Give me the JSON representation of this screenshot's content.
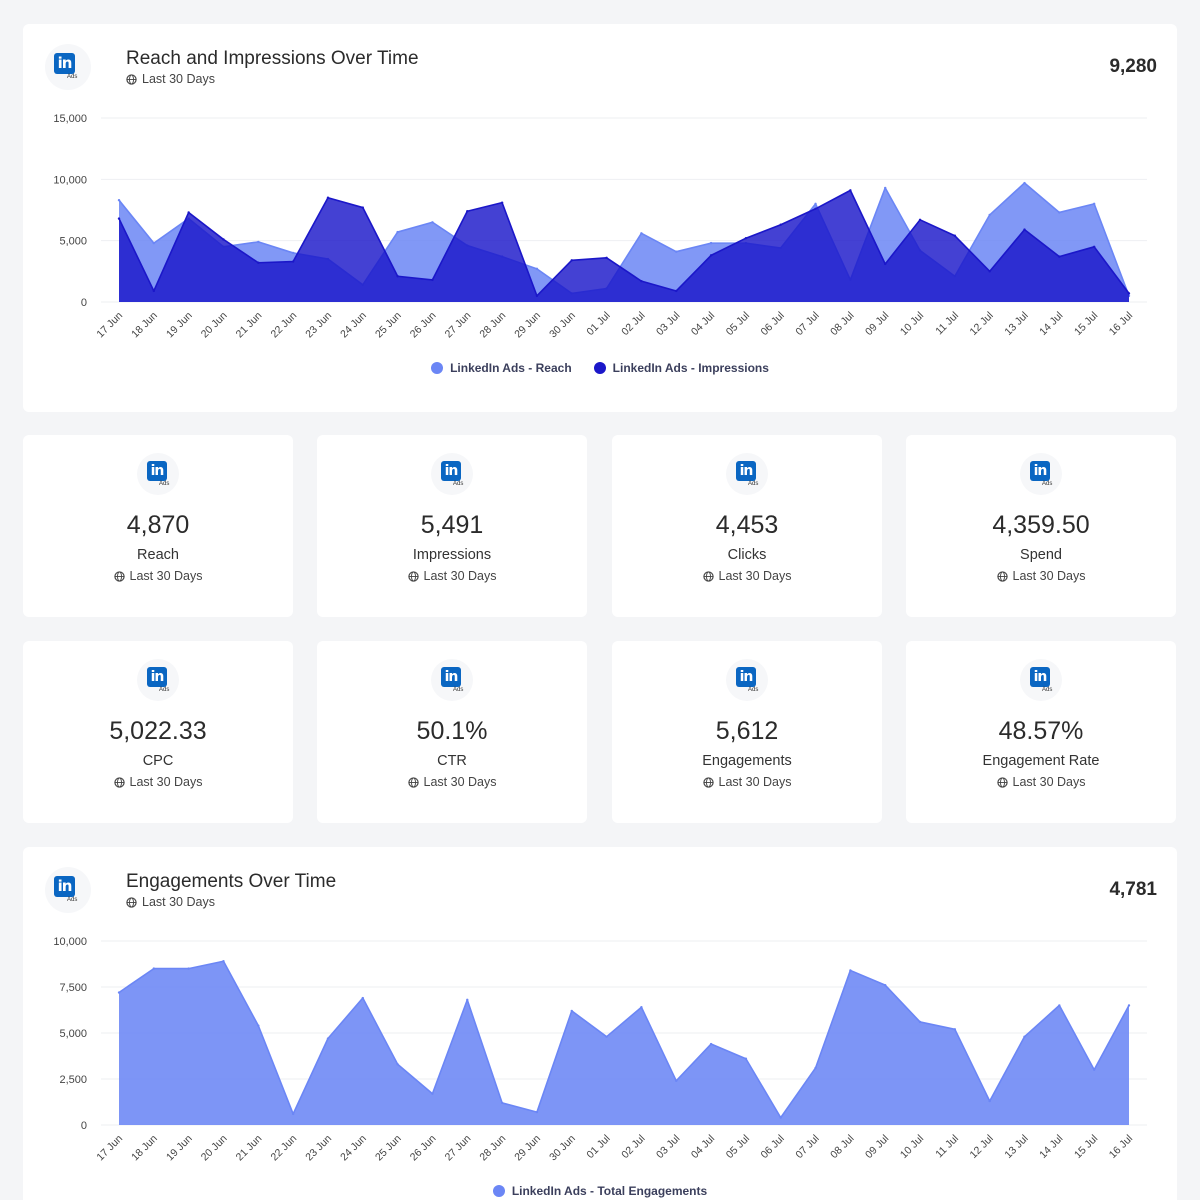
{
  "colors": {
    "reach": "#6b86f5",
    "impressions": "#1b17c9",
    "engagements": "#6b86f5",
    "linkedin_blue": "#0a66c2"
  },
  "logo": {
    "text": "in",
    "sub": "Ads"
  },
  "reach_card": {
    "title": "Reach and Impressions Over Time",
    "period": "Last 30 Days",
    "headline": "9,280"
  },
  "engagements_card": {
    "title": "Engagements Over Time",
    "period": "Last 30 Days",
    "headline": "4,781"
  },
  "kpis": [
    {
      "value": "4,870",
      "label": "Reach",
      "period": "Last 30 Days"
    },
    {
      "value": "5,491",
      "label": "Impressions",
      "period": "Last 30 Days"
    },
    {
      "value": "4,453",
      "label": "Clicks",
      "period": "Last 30 Days"
    },
    {
      "value": "4,359.50",
      "label": "Spend",
      "period": "Last 30 Days"
    },
    {
      "value": "5,022.33",
      "label": "CPC",
      "period": "Last 30 Days"
    },
    {
      "value": "50.1%",
      "label": "CTR",
      "period": "Last 30 Days"
    },
    {
      "value": "5,612",
      "label": "Engagements",
      "period": "Last 30 Days"
    },
    {
      "value": "48.57%",
      "label": "Engagement Rate",
      "period": "Last 30 Days"
    }
  ],
  "chart_data": [
    {
      "type": "area",
      "categories": [
        "17 Jun",
        "18 Jun",
        "19 Jun",
        "20 Jun",
        "21 Jun",
        "22 Jun",
        "23 Jun",
        "24 Jun",
        "25 Jun",
        "26 Jun",
        "27 Jun",
        "28 Jun",
        "29 Jun",
        "30 Jun",
        "01 Jul",
        "02 Jul",
        "03 Jul",
        "04 Jul",
        "05 Jul",
        "06 Jul",
        "07 Jul",
        "08 Jul",
        "09 Jul",
        "10 Jul",
        "11 Jul",
        "12 Jul",
        "13 Jul",
        "14 Jul",
        "15 Jul",
        "16 Jul"
      ],
      "ylim": [
        0,
        15000
      ],
      "yticks": [
        "0",
        "5,000",
        "10,000",
        "15,000"
      ],
      "grid": true,
      "legend": "bottom",
      "series": [
        {
          "name": "LinkedIn Ads - Reach",
          "values": [
            8300,
            4800,
            6800,
            4500,
            4900,
            4000,
            3500,
            1400,
            5700,
            6500,
            4600,
            3700,
            2700,
            700,
            1100,
            5600,
            4100,
            4800,
            4800,
            4400,
            8000,
            1800,
            9300,
            4200,
            2100,
            7100,
            9700,
            7300,
            8000,
            500
          ]
        },
        {
          "name": "LinkedIn Ads - Impressions",
          "values": [
            6800,
            900,
            7300,
            5100,
            3200,
            3300,
            8500,
            7700,
            2100,
            1800,
            7400,
            8100,
            500,
            3400,
            3600,
            1700,
            900,
            3800,
            5200,
            6300,
            7600,
            9100,
            3100,
            6700,
            5400,
            2500,
            5900,
            3700,
            4500,
            700
          ]
        }
      ]
    },
    {
      "type": "area",
      "categories": [
        "17 Jun",
        "18 Jun",
        "19 Jun",
        "20 Jun",
        "21 Jun",
        "22 Jun",
        "23 Jun",
        "24 Jun",
        "25 Jun",
        "26 Jun",
        "27 Jun",
        "28 Jun",
        "29 Jun",
        "30 Jun",
        "01 Jul",
        "02 Jul",
        "03 Jul",
        "04 Jul",
        "05 Jul",
        "06 Jul",
        "07 Jul",
        "08 Jul",
        "09 Jul",
        "10 Jul",
        "11 Jul",
        "12 Jul",
        "13 Jul",
        "14 Jul",
        "15 Jul",
        "16 Jul"
      ],
      "ylim": [
        0,
        10000
      ],
      "yticks": [
        "0",
        "2,500",
        "5,000",
        "7,500",
        "10,000"
      ],
      "grid": true,
      "legend": "bottom",
      "series": [
        {
          "name": "LinkedIn Ads - Total Engagements",
          "values": [
            7200,
            8500,
            8500,
            8900,
            5400,
            600,
            4700,
            6900,
            3300,
            1700,
            6800,
            1200,
            700,
            6200,
            4800,
            6400,
            2400,
            4400,
            3600,
            400,
            3100,
            8400,
            7600,
            5600,
            5200,
            1300,
            4800,
            6500,
            3000,
            6500
          ]
        }
      ]
    }
  ]
}
